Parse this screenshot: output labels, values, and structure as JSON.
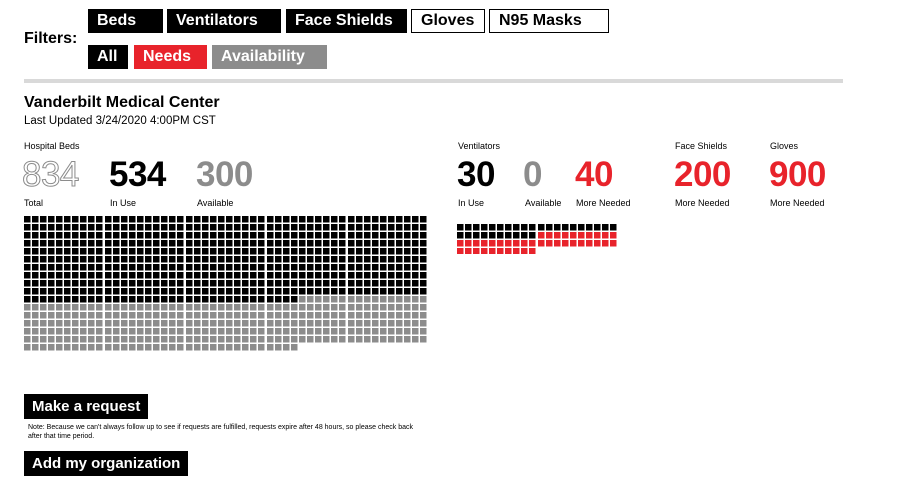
{
  "filters": {
    "label": "Filters:",
    "supply_chips": [
      {
        "label": "Beds",
        "state": "selected"
      },
      {
        "label": "Ventilators",
        "state": "selected"
      },
      {
        "label": "Face Shields",
        "state": "selected"
      },
      {
        "label": "Gloves",
        "state": "unselected"
      },
      {
        "label": "N95 Masks",
        "state": "unselected"
      }
    ],
    "view_chips": [
      {
        "label": "All",
        "state": "selected"
      },
      {
        "label": "Needs",
        "state": "red"
      },
      {
        "label": "Availability",
        "state": "gray"
      }
    ]
  },
  "facility": {
    "name": "Vanderbilt Medical Center",
    "last_updated": "Last Updated 3/24/2020 4:00PM CST"
  },
  "beds": {
    "heading": "Hospital Beds",
    "total": "834",
    "total_label": "Total",
    "in_use": "534",
    "in_use_label": "In Use",
    "available": "300",
    "available_label": "Available",
    "waffle": {
      "in_use": 534,
      "available": 300
    }
  },
  "ventilators": {
    "heading": "Ventilators",
    "in_use": "30",
    "in_use_label": "In Use",
    "available": "0",
    "available_label": "Available",
    "needed": "40",
    "needed_label": "More Needed",
    "waffle": {
      "in_use": 30,
      "needed": 40
    }
  },
  "face_shields": {
    "heading": "Face Shields",
    "needed": "200",
    "needed_label": "More Needed"
  },
  "gloves": {
    "heading": "Gloves",
    "needed": "900",
    "needed_label": "More Needed"
  },
  "actions": {
    "make_request": "Make a request",
    "note": "Note: Because we can't always follow up to see if requests are fulfilled, requests expire after 48 hours, so please check back after that time period.",
    "add_org": "Add my organization"
  },
  "colors": {
    "black": "#000000",
    "red": "#e8232b",
    "gray": "#8c8c8c",
    "light_gray": "#d9d9d9"
  }
}
